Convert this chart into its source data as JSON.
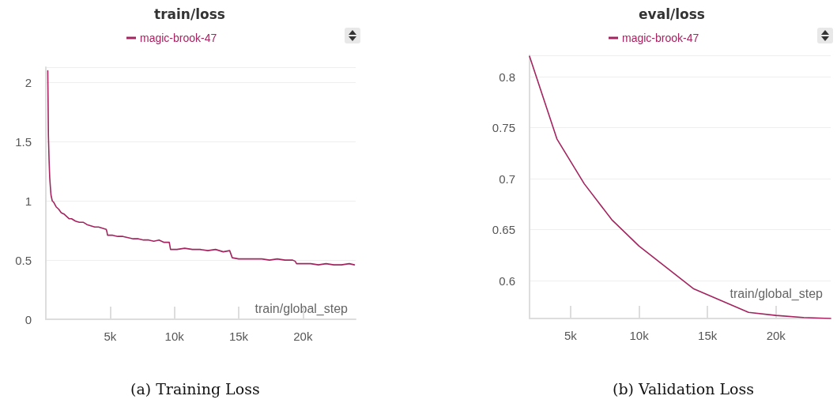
{
  "chart_data": [
    {
      "type": "line",
      "title": "train/loss",
      "xlabel": "train/global_step",
      "annotations": [
        "(a) Training Loss"
      ],
      "legend": "top",
      "grid": "y",
      "marker": "none",
      "line_style": "solid",
      "xlim": [
        0,
        24100
      ],
      "ylim": [
        0,
        2.13
      ],
      "xticks": [
        {
          "value": 5000,
          "label": "5k"
        },
        {
          "value": 10000,
          "label": "10k"
        },
        {
          "value": 15000,
          "label": "15k"
        },
        {
          "value": 20000,
          "label": "20k"
        }
      ],
      "yticks": [
        0,
        0.5,
        1,
        1.5,
        2
      ],
      "series": [
        {
          "name": "magic-brook-47",
          "color": "#a3245f",
          "x": [
            150,
            200,
            250,
            300,
            350,
            400,
            500,
            600,
            700,
            800,
            900,
            1000,
            1200,
            1400,
            1600,
            1800,
            2000,
            2300,
            2600,
            2900,
            3200,
            3500,
            3800,
            4100,
            4400,
            4700,
            4750,
            4800,
            5200,
            5600,
            6000,
            6400,
            6800,
            7200,
            7600,
            8000,
            8400,
            8800,
            9200,
            9600,
            9650,
            9700,
            10200,
            10800,
            11400,
            12000,
            12600,
            13200,
            13800,
            14300,
            14400,
            14500,
            15000,
            15600,
            16200,
            16800,
            17400,
            18000,
            18600,
            19200,
            19400,
            19500,
            20000,
            20600,
            21200,
            21800,
            22400,
            23000,
            23600,
            24000
          ],
          "values": [
            2.1,
            1.55,
            1.35,
            1.2,
            1.12,
            1.05,
            1.0,
            0.99,
            0.97,
            0.95,
            0.94,
            0.93,
            0.9,
            0.89,
            0.87,
            0.85,
            0.85,
            0.83,
            0.82,
            0.82,
            0.8,
            0.79,
            0.78,
            0.78,
            0.77,
            0.76,
            0.74,
            0.71,
            0.71,
            0.7,
            0.7,
            0.69,
            0.68,
            0.68,
            0.67,
            0.67,
            0.66,
            0.67,
            0.65,
            0.65,
            0.62,
            0.59,
            0.59,
            0.6,
            0.59,
            0.59,
            0.58,
            0.59,
            0.57,
            0.58,
            0.55,
            0.52,
            0.51,
            0.51,
            0.51,
            0.51,
            0.5,
            0.51,
            0.5,
            0.5,
            0.49,
            0.47,
            0.47,
            0.47,
            0.46,
            0.47,
            0.46,
            0.46,
            0.47,
            0.46
          ]
        }
      ]
    },
    {
      "type": "line",
      "title": "eval/loss",
      "xlabel": "train/global_step",
      "annotations": [
        "(b) Validation Loss"
      ],
      "legend": "top",
      "grid": "y",
      "marker": "none",
      "line_style": "solid",
      "xlim": [
        2000,
        24000
      ],
      "ylim": [
        0.563,
        0.821
      ],
      "xticks": [
        {
          "value": 5000,
          "label": "5k"
        },
        {
          "value": 10000,
          "label": "10k"
        },
        {
          "value": 15000,
          "label": "15k"
        },
        {
          "value": 20000,
          "label": "20k"
        }
      ],
      "yticks": [
        0.6,
        0.65,
        0.7,
        0.75,
        0.8
      ],
      "series": [
        {
          "name": "magic-brook-47",
          "color": "#a3245f",
          "x": [
            2000,
            4000,
            6000,
            8000,
            10000,
            14000,
            18000,
            20000,
            22000,
            24000
          ],
          "values": [
            0.82,
            0.739,
            0.695,
            0.66,
            0.634,
            0.592,
            0.569,
            0.566,
            0.564,
            0.563
          ]
        }
      ]
    }
  ]
}
